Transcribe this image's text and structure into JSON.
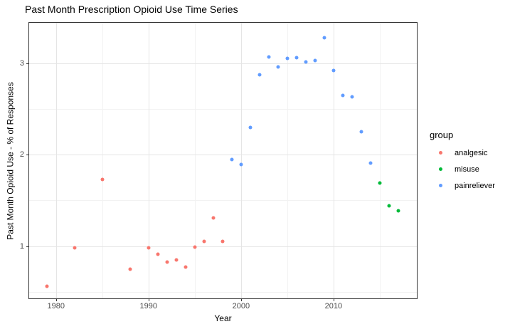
{
  "title": "Past Month Prescription Opioid Use Time Series",
  "chart_data": {
    "type": "scatter",
    "title": "Past Month Prescription Opioid Use Time Series",
    "xlabel": "Year",
    "ylabel": "Past Month Opioid Use - % of Responses",
    "xlim": [
      1977.1,
      2019.0
    ],
    "ylim": [
      0.43,
      3.44
    ],
    "x_major_ticks": [
      1980,
      1990,
      2000,
      2010
    ],
    "x_minor_gridlines": [
      1985,
      1995,
      2005,
      2015
    ],
    "y_major_ticks": [
      1,
      2,
      3
    ],
    "y_minor_gridlines": [
      0.5,
      1.5,
      2.5
    ],
    "grid": true,
    "legend_position": "right",
    "series": [
      {
        "name": "analgesic",
        "color": "#F8766D",
        "points": [
          [
            1979,
            0.56
          ],
          [
            1982,
            0.98
          ],
          [
            1985,
            1.73
          ],
          [
            1988,
            0.75
          ],
          [
            1990,
            0.98
          ],
          [
            1991,
            0.91
          ],
          [
            1992,
            0.83
          ],
          [
            1993,
            0.85
          ],
          [
            1994,
            0.77
          ],
          [
            1995,
            0.99
          ],
          [
            1996,
            1.05
          ],
          [
            1997,
            1.31
          ],
          [
            1998,
            1.05
          ]
        ]
      },
      {
        "name": "misuse",
        "color": "#00BA38",
        "points": [
          [
            2015,
            1.69
          ],
          [
            2016,
            1.44
          ],
          [
            2017,
            1.39
          ]
        ]
      },
      {
        "name": "painreliever",
        "color": "#619CFF",
        "points": [
          [
            1999,
            1.95
          ],
          [
            2000,
            1.89
          ],
          [
            2001,
            2.3
          ],
          [
            2002,
            2.87
          ],
          [
            2003,
            3.07
          ],
          [
            2004,
            2.96
          ],
          [
            2005,
            3.05
          ],
          [
            2006,
            3.06
          ],
          [
            2007,
            3.01
          ],
          [
            2008,
            3.03
          ],
          [
            2009,
            3.28
          ],
          [
            2010,
            2.92
          ],
          [
            2011,
            2.65
          ],
          [
            2012,
            2.63
          ],
          [
            2013,
            2.25
          ],
          [
            2014,
            1.91
          ]
        ]
      }
    ]
  },
  "legend": {
    "title": "group",
    "items": [
      {
        "label": "analgesic",
        "color": "#F8766D"
      },
      {
        "label": "misuse",
        "color": "#00BA38"
      },
      {
        "label": "painreliever",
        "color": "#619CFF"
      }
    ]
  },
  "colors": {
    "panel_border": "#333333",
    "grid_major": "#e5e5e5",
    "grid_minor": "#f2f2f2",
    "tick_label": "#4d4d4d",
    "background": "#ffffff"
  }
}
